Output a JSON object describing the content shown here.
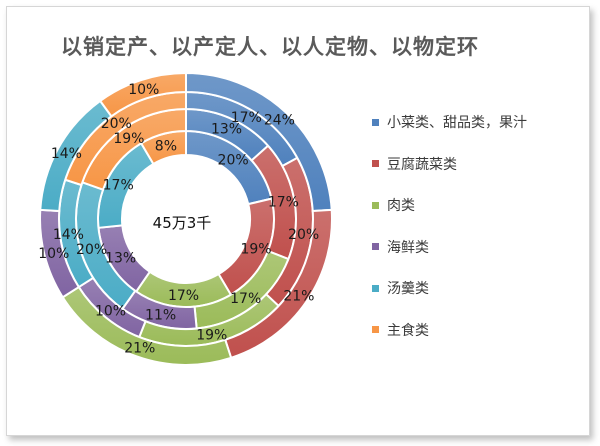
{
  "chart_data": {
    "type": "pie",
    "subtype": "multi-ring-doughnut",
    "title": "以销定产、以产定人、以人定物、以物定环",
    "center_label": "45万3千",
    "categories": [
      "小菜类、甜品类，果汁",
      "豆腐蔬菜类",
      "肉类",
      "海鲜类",
      "汤羹类",
      "主食类"
    ],
    "colors": [
      "#4f81bd",
      "#c0504d",
      "#9bbb59",
      "#8064a2",
      "#4bacc6",
      "#f79646"
    ],
    "series": [
      {
        "values": [
          20,
          19,
          17,
          13,
          17,
          8
        ],
        "labels": [
          "20%",
          "19%",
          "17%",
          "13%",
          "17%",
          "8%"
        ]
      },
      {
        "values": [
          13,
          17,
          17,
          11,
          20,
          19
        ],
        "labels": [
          "13%",
          "17%",
          "17%",
          "11%",
          "20%",
          "19%"
        ]
      },
      {
        "values": [
          17,
          20,
          19,
          10,
          14,
          20
        ],
        "labels": [
          "17%",
          "20%",
          "19%",
          "10%",
          "14%",
          "20%"
        ]
      },
      {
        "values": [
          24,
          21,
          21,
          10,
          14,
          10
        ],
        "labels": [
          "24%",
          "21%",
          "21%",
          "10%",
          "14%",
          "10%"
        ]
      }
    ],
    "legend": "right",
    "grid": false
  }
}
